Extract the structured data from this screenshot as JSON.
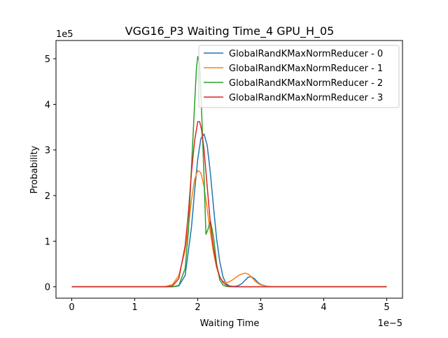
{
  "chart_data": {
    "type": "line",
    "title": "VGG16_P3 Waiting Time_4 GPU_H_05",
    "xlabel": "Waiting Time",
    "ylabel": "Probability",
    "x_offset_text": "1e−5",
    "y_offset_text": "1e5",
    "x_scale": 1e-05,
    "y_scale": 100000,
    "xlim": [
      -0.25,
      5.25
    ],
    "ylim": [
      -0.25,
      5.4
    ],
    "x_ticks": [
      0,
      1,
      2,
      3,
      4,
      5
    ],
    "y_ticks": [
      0,
      1,
      2,
      3,
      4,
      5
    ],
    "legend_position": "top-right",
    "series": [
      {
        "name": "GlobalRandKMaxNormReducer - 0",
        "color": "#1f77b4",
        "x": [
          0,
          1.4,
          1.6,
          1.7,
          1.8,
          1.9,
          1.95,
          2.0,
          2.05,
          2.1,
          2.15,
          2.2,
          2.25,
          2.3,
          2.35,
          2.4,
          2.45,
          2.5,
          2.55,
          2.6,
          2.65,
          2.7,
          2.75,
          2.8,
          2.85,
          2.9,
          2.95,
          3.0,
          3.1,
          3.2,
          3.5,
          5.0
        ],
        "y": [
          0,
          0,
          0.0,
          0.02,
          0.25,
          1.3,
          2.1,
          2.8,
          3.25,
          3.35,
          3.1,
          2.5,
          1.75,
          1.05,
          0.55,
          0.22,
          0.07,
          0.02,
          0.01,
          0.01,
          0.03,
          0.07,
          0.14,
          0.21,
          0.22,
          0.18,
          0.1,
          0.05,
          0.01,
          0,
          0,
          0
        ]
      },
      {
        "name": "GlobalRandKMaxNormReducer - 1",
        "color": "#ff7f0e",
        "x": [
          0,
          1.4,
          1.5,
          1.6,
          1.7,
          1.8,
          1.85,
          1.9,
          1.95,
          2.0,
          2.05,
          2.1,
          2.15,
          2.2,
          2.25,
          2.3,
          2.35,
          2.4,
          2.45,
          2.5,
          2.55,
          2.6,
          2.65,
          2.7,
          2.75,
          2.8,
          2.85,
          2.9,
          2.95,
          3.0,
          3.1,
          3.2,
          3.5,
          5.0
        ],
        "y": [
          0,
          0,
          0.01,
          0.05,
          0.25,
          0.8,
          1.3,
          1.9,
          2.35,
          2.55,
          2.5,
          2.2,
          1.7,
          1.2,
          0.75,
          0.42,
          0.2,
          0.12,
          0.09,
          0.11,
          0.15,
          0.2,
          0.25,
          0.28,
          0.3,
          0.28,
          0.22,
          0.14,
          0.08,
          0.04,
          0.01,
          0,
          0,
          0
        ]
      },
      {
        "name": "GlobalRandKMaxNormReducer - 2",
        "color": "#2ca02c",
        "x": [
          0,
          1.6,
          1.7,
          1.8,
          1.85,
          1.9,
          1.95,
          1.98,
          2.0,
          2.03,
          2.06,
          2.1,
          2.13,
          2.16,
          2.2,
          2.25,
          2.3,
          2.35,
          2.4,
          2.45,
          2.5,
          2.6,
          3.0,
          5.0
        ],
        "y": [
          0,
          0,
          0.03,
          0.4,
          1.2,
          2.6,
          4.0,
          4.8,
          5.05,
          4.9,
          3.9,
          2.4,
          1.15,
          1.25,
          1.45,
          1.1,
          0.5,
          0.15,
          0.04,
          0.01,
          0,
          0,
          0,
          0
        ]
      },
      {
        "name": "GlobalRandKMaxNormReducer - 3",
        "color": "#d62728",
        "x": [
          0,
          1.5,
          1.6,
          1.7,
          1.8,
          1.85,
          1.9,
          1.95,
          2.0,
          2.03,
          2.06,
          2.1,
          2.15,
          2.2,
          2.25,
          2.3,
          2.35,
          2.4,
          2.45,
          2.5,
          2.6,
          2.7,
          3.0,
          5.0
        ],
        "y": [
          0,
          0,
          0.02,
          0.18,
          0.9,
          1.6,
          2.5,
          3.2,
          3.62,
          3.62,
          3.45,
          3.0,
          2.2,
          1.4,
          0.85,
          0.45,
          0.22,
          0.1,
          0.04,
          0.01,
          0,
          0,
          0,
          0
        ]
      }
    ]
  }
}
